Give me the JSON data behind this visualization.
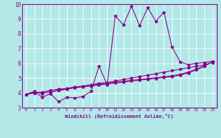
{
  "title": "",
  "xlabel": "Windchill (Refroidissement éolien,°C)",
  "ylabel": "",
  "xlim": [
    -0.5,
    23.5
  ],
  "ylim": [
    3,
    10
  ],
  "yticks": [
    3,
    4,
    5,
    6,
    7,
    8,
    9,
    10
  ],
  "xticks": [
    0,
    1,
    2,
    3,
    4,
    5,
    6,
    7,
    8,
    9,
    10,
    11,
    12,
    13,
    14,
    15,
    16,
    17,
    18,
    19,
    20,
    21,
    22,
    23
  ],
  "bg_color": "#b3e8e8",
  "line_color": "#880088",
  "grid_color": "#ffffff",
  "series": [
    [
      3.9,
      4.1,
      3.7,
      3.95,
      3.4,
      3.7,
      3.65,
      3.75,
      4.1,
      5.8,
      4.55,
      9.2,
      8.6,
      9.85,
      8.55,
      9.75,
      8.85,
      9.45,
      7.1,
      6.1,
      5.9,
      6.0,
      6.05,
      6.15
    ],
    [
      3.9,
      4.05,
      3.95,
      4.05,
      4.15,
      4.25,
      4.35,
      4.45,
      4.55,
      4.65,
      4.7,
      4.8,
      4.9,
      5.0,
      5.1,
      5.2,
      5.3,
      5.4,
      5.5,
      5.6,
      5.7,
      5.8,
      5.9,
      6.05
    ],
    [
      3.9,
      4.0,
      4.05,
      4.15,
      4.25,
      4.3,
      4.4,
      4.45,
      4.5,
      4.58,
      4.65,
      4.72,
      4.78,
      4.85,
      4.9,
      4.96,
      5.02,
      5.08,
      5.15,
      5.25,
      5.4,
      5.6,
      5.85,
      6.1
    ],
    [
      3.9,
      4.0,
      4.05,
      4.15,
      4.22,
      4.28,
      4.35,
      4.4,
      4.47,
      4.53,
      4.6,
      4.67,
      4.73,
      4.8,
      4.86,
      4.92,
      4.98,
      5.04,
      5.1,
      5.2,
      5.35,
      5.55,
      5.8,
      6.1
    ]
  ],
  "marker": "*",
  "markersize": 3,
  "linewidth": 0.8
}
